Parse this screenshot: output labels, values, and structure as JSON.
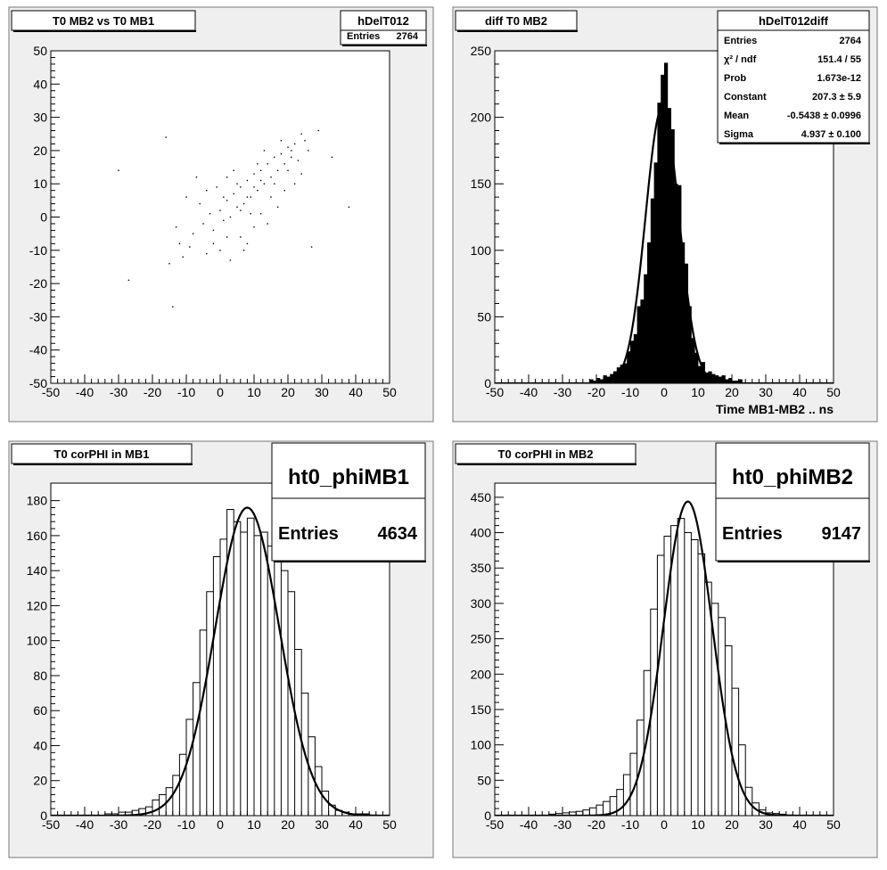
{
  "colors": {
    "pad_bg": "#efefef",
    "frame": "#ffffff",
    "ink": "#000000",
    "border": "#777777"
  },
  "chart_data": [
    {
      "type": "scatter",
      "title": "T0 MB2 vs T0 MB1",
      "stats": {
        "name": "hDelT012",
        "rows": [
          {
            "label": "Entries",
            "value": "2764"
          }
        ]
      },
      "xlim": [
        -50,
        50
      ],
      "ylim": [
        -50,
        50
      ],
      "xticks": [
        "-50",
        "-40",
        "-30",
        "-20",
        "-10",
        "0",
        "10",
        "20",
        "30",
        "40",
        "50"
      ],
      "yticks": [
        "-50",
        "-40",
        "-30",
        "-20",
        "-10",
        "0",
        "10",
        "20",
        "30",
        "40",
        "50"
      ],
      "xlabel": "",
      "ylabel": "",
      "grid": false,
      "points": [
        {
          "x": -11,
          "y": -12
        },
        {
          "x": -8,
          "y": -5
        },
        {
          "x": -5,
          "y": -2
        },
        {
          "x": -3,
          "y": 1
        },
        {
          "x": -2,
          "y": -4
        },
        {
          "x": 0,
          "y": 2
        },
        {
          "x": 1,
          "y": -1
        },
        {
          "x": 2,
          "y": 5
        },
        {
          "x": 3,
          "y": 0
        },
        {
          "x": 4,
          "y": 7
        },
        {
          "x": 5,
          "y": 3
        },
        {
          "x": 6,
          "y": 9
        },
        {
          "x": 7,
          "y": 4
        },
        {
          "x": 8,
          "y": 11
        },
        {
          "x": 9,
          "y": 6
        },
        {
          "x": 10,
          "y": 13
        },
        {
          "x": 11,
          "y": 8
        },
        {
          "x": 12,
          "y": 14
        },
        {
          "x": 13,
          "y": 10
        },
        {
          "x": 14,
          "y": 16
        },
        {
          "x": 15,
          "y": 12
        },
        {
          "x": 16,
          "y": 18
        },
        {
          "x": 17,
          "y": 14
        },
        {
          "x": 18,
          "y": 19
        },
        {
          "x": 19,
          "y": 16
        },
        {
          "x": 20,
          "y": 21
        },
        {
          "x": 21,
          "y": 18
        },
        {
          "x": 22,
          "y": 22
        },
        {
          "x": 23,
          "y": 17
        },
        {
          "x": 25,
          "y": 23
        },
        {
          "x": -6,
          "y": 4
        },
        {
          "x": -4,
          "y": 8
        },
        {
          "x": -1,
          "y": 9
        },
        {
          "x": 2,
          "y": 12
        },
        {
          "x": 4,
          "y": 14
        },
        {
          "x": 6,
          "y": -6
        },
        {
          "x": 8,
          "y": -8
        },
        {
          "x": 10,
          "y": -3
        },
        {
          "x": 12,
          "y": 1
        },
        {
          "x": -9,
          "y": -9
        },
        {
          "x": -13,
          "y": -3
        },
        {
          "x": -15,
          "y": -14
        },
        {
          "x": -30,
          "y": 14
        },
        {
          "x": -27,
          "y": -19
        },
        {
          "x": 38,
          "y": 3
        },
        {
          "x": 27,
          "y": -9
        },
        {
          "x": 29,
          "y": 26
        },
        {
          "x": -16,
          "y": 24
        },
        {
          "x": 33,
          "y": 18
        },
        {
          "x": -14,
          "y": -27
        },
        {
          "x": 0,
          "y": -10
        },
        {
          "x": 3,
          "y": -13
        },
        {
          "x": 7,
          "y": -10
        },
        {
          "x": 14,
          "y": -2
        },
        {
          "x": 17,
          "y": 3
        },
        {
          "x": 19,
          "y": 8
        },
        {
          "x": 24,
          "y": 13
        },
        {
          "x": 26,
          "y": 20
        },
        {
          "x": -7,
          "y": 12
        },
        {
          "x": -10,
          "y": 6
        },
        {
          "x": 1,
          "y": 6
        },
        {
          "x": 5,
          "y": 10
        },
        {
          "x": 9,
          "y": 1
        },
        {
          "x": 11,
          "y": 16
        },
        {
          "x": 13,
          "y": 20
        },
        {
          "x": 15,
          "y": 6
        },
        {
          "x": 18,
          "y": 23
        },
        {
          "x": 20,
          "y": 14
        },
        {
          "x": 22,
          "y": 10
        },
        {
          "x": -2,
          "y": -8
        },
        {
          "x": -12,
          "y": -8
        },
        {
          "x": -4,
          "y": -11
        },
        {
          "x": 2,
          "y": -6
        },
        {
          "x": 6,
          "y": 2
        },
        {
          "x": 8,
          "y": 6
        },
        {
          "x": 10,
          "y": 9
        },
        {
          "x": 12,
          "y": 11
        },
        {
          "x": 16,
          "y": 10
        },
        {
          "x": 21,
          "y": 20
        },
        {
          "x": 24,
          "y": 25
        }
      ]
    },
    {
      "type": "bar",
      "title": "diff T0 MB2",
      "stats": {
        "name": "hDelT012diff",
        "rows": [
          {
            "label": "Entries",
            "value": "2764"
          },
          {
            "label": "χ² / ndf",
            "value": "151.4 / 55"
          },
          {
            "label": "Prob",
            "value": "1.673e-12"
          },
          {
            "label": "Constant",
            "value": "207.3 ± 5.9"
          },
          {
            "label": "Mean",
            "value": "-0.5438 ± 0.0996"
          },
          {
            "label": "Sigma",
            "value": "4.937 ± 0.100"
          }
        ]
      },
      "xlim": [
        -50,
        50
      ],
      "ylim": [
        0,
        250
      ],
      "xticks": [
        "-50",
        "-40",
        "-30",
        "-20",
        "-10",
        "0",
        "10",
        "20",
        "30",
        "40",
        "50"
      ],
      "yticks": [
        "0",
        "50",
        "100",
        "150",
        "200",
        "250"
      ],
      "xlabel": "Time MB1-MB2  ..  ns",
      "ylabel": "",
      "bin_width": 1,
      "bin_lows": [
        -22,
        -21,
        -20,
        -19,
        -18,
        -17,
        -16,
        -15,
        -14,
        -13,
        -12,
        -11,
        -10,
        -9,
        -8,
        -7,
        -6,
        -5,
        -4,
        -3,
        -2,
        -1,
        0,
        1,
        2,
        3,
        4,
        5,
        6,
        7,
        8,
        9,
        10,
        11,
        12,
        13,
        14,
        15,
        16,
        17,
        18,
        19,
        20,
        21,
        22
      ],
      "values": [
        3,
        2,
        4,
        3,
        6,
        5,
        7,
        9,
        12,
        14,
        15,
        24,
        32,
        37,
        58,
        63,
        82,
        106,
        139,
        166,
        211,
        232,
        241,
        207,
        191,
        150,
        149,
        106,
        90,
        58,
        34,
        23,
        13,
        16,
        8,
        9,
        7,
        6,
        5,
        6,
        3,
        4,
        2,
        2,
        3
      ],
      "fit": {
        "function": "gaus",
        "constant": 207.3,
        "mean": -0.5438,
        "sigma": 4.937
      }
    },
    {
      "type": "step",
      "title": "T0 corPHI in MB1",
      "stats": {
        "name": "ht0_phiMB1",
        "rows": [
          {
            "label": "Entries",
            "value": "4634"
          }
        ]
      },
      "xlim": [
        -50,
        50
      ],
      "ylim": [
        0,
        190
      ],
      "xticks": [
        "-50",
        "-40",
        "-30",
        "-20",
        "-10",
        "0",
        "10",
        "20",
        "30",
        "40",
        "50"
      ],
      "yticks": [
        "0",
        "20",
        "40",
        "60",
        "80",
        "100",
        "120",
        "140",
        "160",
        "180"
      ],
      "xlabel": "",
      "ylabel": "",
      "bin_width": 2,
      "bin_lows": [
        -34,
        -32,
        -30,
        -28,
        -26,
        -24,
        -22,
        -20,
        -18,
        -16,
        -14,
        -12,
        -10,
        -8,
        -6,
        -4,
        -2,
        0,
        2,
        4,
        6,
        8,
        10,
        12,
        14,
        16,
        18,
        20,
        22,
        24,
        26,
        28,
        30,
        32,
        34,
        36,
        38,
        40,
        42
      ],
      "values": [
        1,
        1,
        2,
        2,
        3,
        4,
        5,
        9,
        12,
        16,
        23,
        35,
        55,
        76,
        106,
        128,
        148,
        158,
        175,
        168,
        162,
        170,
        160,
        162,
        154,
        150,
        140,
        128,
        95,
        70,
        45,
        28,
        14,
        6,
        3,
        2,
        1,
        1,
        1
      ],
      "fit": {
        "function": "gaus",
        "constant": 176,
        "mean": 8,
        "sigma": 9.5
      }
    },
    {
      "type": "step",
      "title": "T0 corPHI in MB2",
      "stats": {
        "name": "ht0_phiMB2",
        "rows": [
          {
            "label": "Entries",
            "value": "9147"
          }
        ]
      },
      "xlim": [
        -50,
        50
      ],
      "ylim": [
        0,
        470
      ],
      "xticks": [
        "-50",
        "-40",
        "-30",
        "-20",
        "-10",
        "0",
        "10",
        "20",
        "30",
        "40",
        "50"
      ],
      "yticks": [
        "0",
        "50",
        "100",
        "150",
        "200",
        "250",
        "300",
        "350",
        "400",
        "450"
      ],
      "xlabel": "",
      "ylabel": "",
      "bin_width": 2,
      "bin_lows": [
        -34,
        -32,
        -30,
        -28,
        -26,
        -24,
        -22,
        -20,
        -18,
        -16,
        -14,
        -12,
        -10,
        -8,
        -6,
        -4,
        -2,
        0,
        2,
        4,
        6,
        8,
        10,
        12,
        14,
        16,
        18,
        20,
        22,
        24,
        26,
        28,
        30,
        32,
        34,
        36
      ],
      "values": [
        2,
        3,
        4,
        5,
        6,
        8,
        11,
        15,
        20,
        27,
        37,
        58,
        88,
        135,
        205,
        292,
        368,
        395,
        410,
        420,
        400,
        390,
        370,
        330,
        300,
        280,
        240,
        180,
        100,
        40,
        18,
        8,
        4,
        3,
        2,
        1
      ],
      "fit": {
        "function": "gaus",
        "constant": 444,
        "mean": 7,
        "sigma": 7.2
      }
    }
  ]
}
